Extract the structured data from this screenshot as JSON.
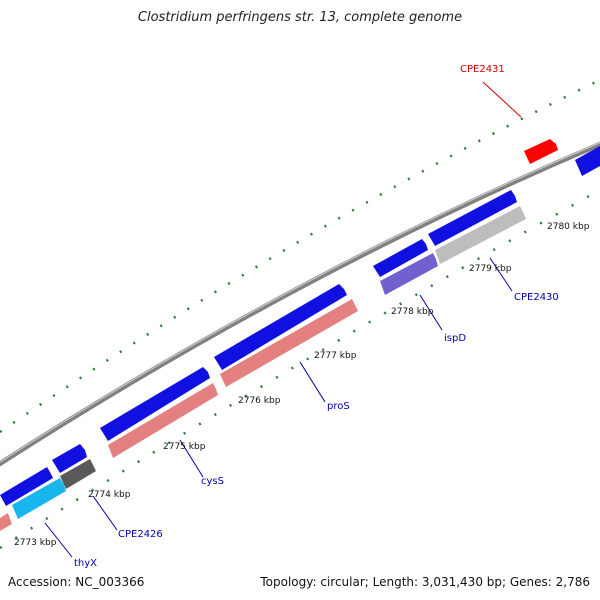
{
  "title": "Clostridium perfringens str. 13, complete genome",
  "footer": {
    "accession": "Accession: NC_003366",
    "summary": "Topology: circular; Length: 3,031,430 bp; Genes: 2,786"
  },
  "colors": {
    "backbone": "#8a8a8a",
    "tick": "#2e7d32",
    "forward_gene": "#1010e0",
    "pink_gene": "#e58080",
    "gray_gene": "#bdbdbd",
    "dark_gray_gene": "#595959",
    "cyan_gene": "#19b5ee",
    "purple_gene": "#7060d0",
    "highlight_gene": "#ff0000",
    "label_blue": "#0000aa",
    "label_red": "#cc0000"
  },
  "scale_labels": [
    "2773 kbp",
    "2774 kbp",
    "2775 kbp",
    "2776 kbp",
    "2777 kbp",
    "2778 kbp",
    "2779 kbp",
    "2780 kbp"
  ],
  "gene_labels": [
    "thyX",
    "CPE2426",
    "cysS",
    "proS",
    "ispD",
    "CPE2430",
    "CPE2431"
  ]
}
